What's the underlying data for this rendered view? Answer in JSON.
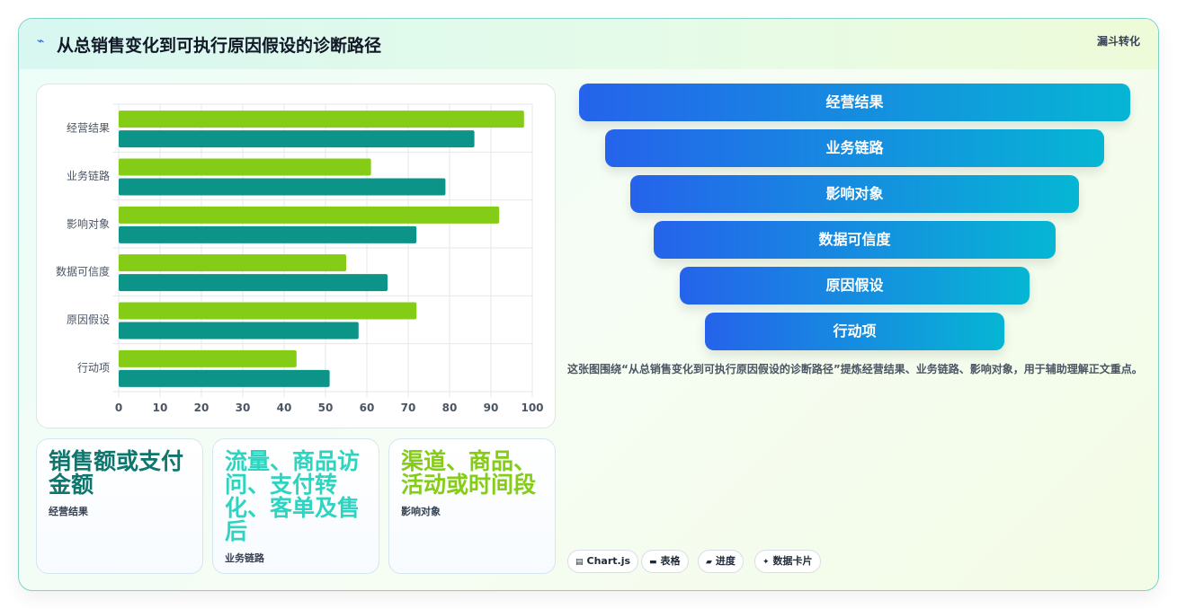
{
  "header": {
    "icon": "lightning-icon",
    "title": "从总销售变化到可执行原因假设的诊断路径",
    "tag": "漏斗转化"
  },
  "chart_data": {
    "type": "bar",
    "orientation": "horizontal",
    "categories": [
      "经营结果",
      "业务链路",
      "影响对象",
      "数据可信度",
      "原因假设",
      "行动项"
    ],
    "series": [
      {
        "color": "#84cc16",
        "values": [
          98,
          61,
          92,
          55,
          72,
          43
        ]
      },
      {
        "color": "#0d9488",
        "values": [
          86,
          79,
          72,
          65,
          58,
          51
        ]
      }
    ],
    "xlim": [
      0,
      100
    ],
    "xticks": [
      0,
      10,
      20,
      30,
      40,
      50,
      60,
      70,
      80,
      90,
      100
    ],
    "grid": true
  },
  "cards": [
    {
      "value": "销售额或支付金额",
      "label": "经营结果",
      "color": "#0f766e"
    },
    {
      "value": "流量、商品访问、支付转化、客单及售后",
      "label": "业务链路",
      "color": "#2dd4bf"
    },
    {
      "value": "渠道、商品、活动或时间段",
      "label": "影响对象",
      "color": "#84cc16"
    }
  ],
  "funnel": [
    "经营结果",
    "业务链路",
    "影响对象",
    "数据可信度",
    "原因假设",
    "行动项"
  ],
  "description": "这张图围绕“从总销售变化到可执行原因假设的诊断路径”提炼经营结果、业务链路、影响对象，用于辅助理解正文重点。",
  "chips": [
    {
      "icon": "chart-icon",
      "glyph": "▤",
      "label": "Chart.js"
    },
    {
      "icon": "table-icon",
      "glyph": "▬",
      "label": "表格"
    },
    {
      "icon": "progress-icon",
      "glyph": "▰",
      "label": "进度"
    },
    {
      "icon": "sparkle-icon",
      "glyph": "✦",
      "label": "数据卡片"
    }
  ]
}
